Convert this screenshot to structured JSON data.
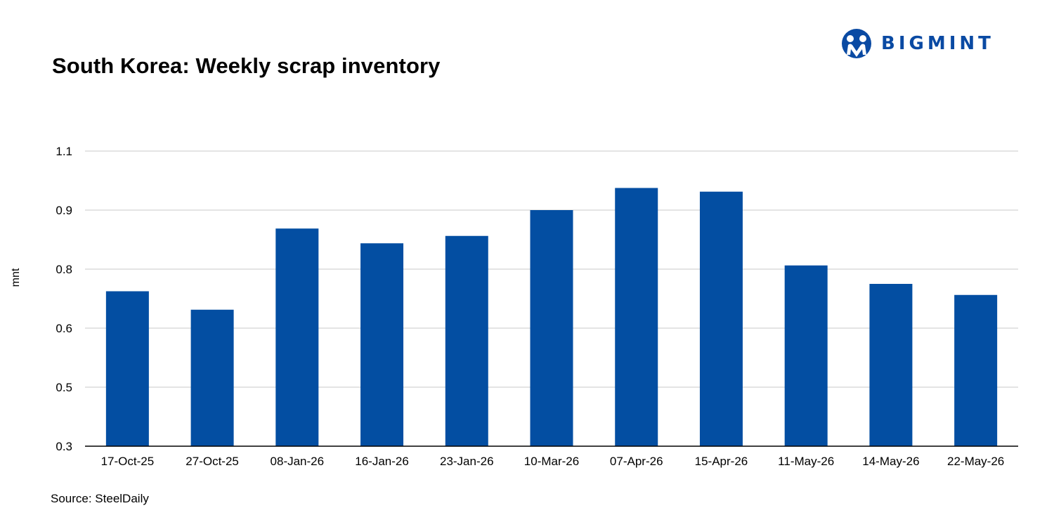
{
  "header": {
    "title": "South Korea: Weekly scrap inventory"
  },
  "logo": {
    "text": "BIGMINT",
    "icon": "bigmint-people-icon",
    "color": "#0a4aa3"
  },
  "footer": {
    "source": "Source: SteelDaily"
  },
  "chart_data": {
    "type": "bar",
    "title": "South Korea: Weekly scrap inventory",
    "xlabel": "",
    "ylabel": "mnt",
    "categories": [
      "17-Oct-25",
      "27-Oct-25",
      "08-Jan-26",
      "16-Jan-26",
      "23-Jan-26",
      "10-Mar-26",
      "07-Apr-26",
      "15-Apr-26",
      "11-May-26",
      "14-May-26",
      "22-May-26"
    ],
    "values": [
      0.72,
      0.67,
      0.89,
      0.85,
      0.87,
      0.94,
      1.0,
      0.99,
      0.79,
      0.74,
      0.71
    ],
    "y_tick_labels": [
      "0.3",
      "0.5",
      "0.6",
      "0.8",
      "0.9",
      "1.1"
    ],
    "ylim": [
      0.3,
      1.1
    ],
    "grid": true,
    "bar_color": "#034ea2"
  }
}
